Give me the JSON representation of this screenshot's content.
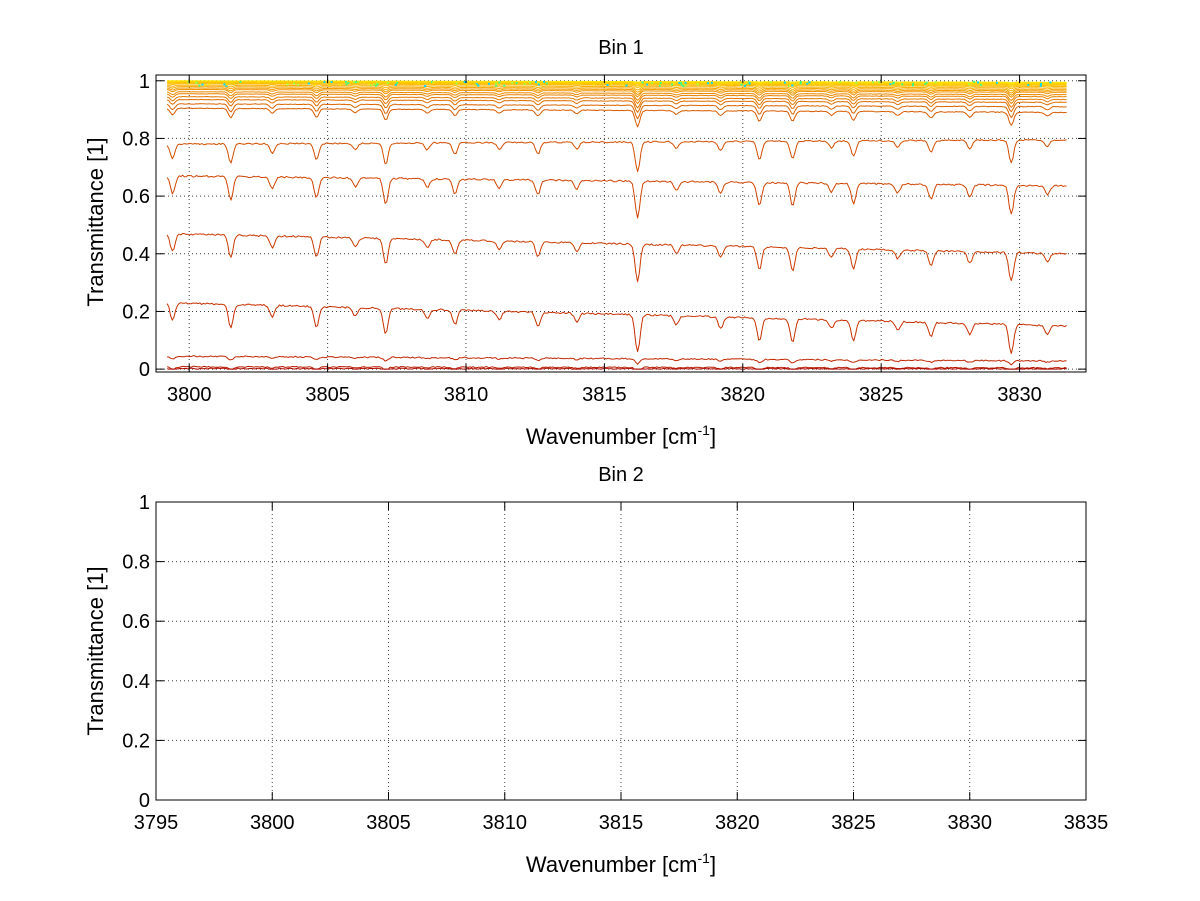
{
  "chart_data": [
    {
      "type": "line",
      "title": "Bin 1",
      "xlabel": "Wavenumber [cm",
      "xlabel_sup": "-1",
      "xlabel_end": "]",
      "ylabel": "Transmittance [1]",
      "xlim": [
        3798.8,
        3832.4
      ],
      "ylim": [
        -0.01,
        1.02
      ],
      "xticks": [
        3800,
        3805,
        3810,
        3815,
        3820,
        3825,
        3830
      ],
      "yticks": [
        0,
        0.2,
        0.4,
        0.6,
        0.8,
        1
      ],
      "ytick_labels": [
        "0",
        "0.2",
        "0.4",
        "0.6",
        "0.8",
        "1"
      ],
      "grid": true,
      "legend": "none",
      "x_range": [
        3799.2,
        3831.7
      ],
      "absorption_lines": [
        {
          "x": 3799.4,
          "depth": 0.06
        },
        {
          "x": 3801.5,
          "depth": 0.08
        },
        {
          "x": 3803.0,
          "depth": 0.04
        },
        {
          "x": 3804.6,
          "depth": 0.07
        },
        {
          "x": 3806.0,
          "depth": 0.03
        },
        {
          "x": 3807.1,
          "depth": 0.09
        },
        {
          "x": 3808.6,
          "depth": 0.03
        },
        {
          "x": 3809.6,
          "depth": 0.05
        },
        {
          "x": 3811.2,
          "depth": 0.03
        },
        {
          "x": 3812.6,
          "depth": 0.05
        },
        {
          "x": 3814.0,
          "depth": 0.03
        },
        {
          "x": 3816.2,
          "depth": 0.13
        },
        {
          "x": 3817.6,
          "depth": 0.03
        },
        {
          "x": 3819.2,
          "depth": 0.04
        },
        {
          "x": 3820.6,
          "depth": 0.08
        },
        {
          "x": 3821.8,
          "depth": 0.08
        },
        {
          "x": 3823.2,
          "depth": 0.03
        },
        {
          "x": 3824.0,
          "depth": 0.07
        },
        {
          "x": 3825.6,
          "depth": 0.03
        },
        {
          "x": 3826.8,
          "depth": 0.05
        },
        {
          "x": 3828.2,
          "depth": 0.04
        },
        {
          "x": 3829.7,
          "depth": 0.1
        },
        {
          "x": 3831.0,
          "depth": 0.03
        }
      ],
      "series": [
        {
          "level_start": 1.0,
          "level_end": 0.995,
          "color": "#ffee00"
        },
        {
          "level_start": 0.999,
          "level_end": 0.994,
          "color": "#ffe600"
        },
        {
          "level_start": 0.998,
          "level_end": 0.992,
          "color": "#ffdd00"
        },
        {
          "level_start": 0.997,
          "level_end": 0.99,
          "color": "#ffd400"
        },
        {
          "level_start": 0.995,
          "level_end": 0.987,
          "color": "#ffcb00"
        },
        {
          "level_start": 0.993,
          "level_end": 0.984,
          "color": "#ffc200"
        },
        {
          "level_start": 0.99,
          "level_end": 0.98,
          "color": "#ffb900"
        },
        {
          "level_start": 0.985,
          "level_end": 0.975,
          "color": "#fcaf00"
        },
        {
          "level_start": 0.98,
          "level_end": 0.97,
          "color": "#f8a600"
        },
        {
          "level_start": 0.975,
          "level_end": 0.965,
          "color": "#f49c00"
        },
        {
          "level_start": 0.97,
          "level_end": 0.96,
          "color": "#f09200"
        },
        {
          "level_start": 0.962,
          "level_end": 0.952,
          "color": "#ec8a00"
        },
        {
          "level_start": 0.955,
          "level_end": 0.945,
          "color": "#e88100"
        },
        {
          "level_start": 0.945,
          "level_end": 0.935,
          "color": "#e47800"
        },
        {
          "level_start": 0.935,
          "level_end": 0.925,
          "color": "#e06e00"
        },
        {
          "level_start": 0.92,
          "level_end": 0.91,
          "color": "#dc6400"
        },
        {
          "level_start": 0.905,
          "level_end": 0.89,
          "color": "#d85a00"
        },
        {
          "level_start": 0.78,
          "level_end": 0.795,
          "color": "#d44e00"
        },
        {
          "level_start": 0.67,
          "level_end": 0.635,
          "color": "#d04400"
        },
        {
          "level_start": 0.47,
          "level_end": 0.4,
          "color": "#cc3a00"
        },
        {
          "level_start": 0.23,
          "level_end": 0.15,
          "color": "#c83000"
        },
        {
          "level_start": 0.045,
          "level_end": 0.028,
          "color": "#c02600"
        },
        {
          "level_start": 0.008,
          "level_end": 0.004,
          "color": "#b81a00"
        },
        {
          "level_start": 0.002,
          "level_end": 0.001,
          "color": "#b00800"
        }
      ],
      "speckle_colors": [
        "#00d8ff",
        "#40ff80",
        "#a0ff40",
        "#ffe000"
      ]
    },
    {
      "type": "line",
      "title": "Bin 2",
      "xlabel": "Wavenumber [cm",
      "xlabel_sup": "-1",
      "xlabel_end": "]",
      "ylabel": "Transmittance [1]",
      "xlim": [
        3795,
        3835
      ],
      "ylim": [
        0,
        1
      ],
      "xticks": [
        3795,
        3800,
        3805,
        3810,
        3815,
        3820,
        3825,
        3830,
        3835
      ],
      "yticks": [
        0,
        0.2,
        0.4,
        0.6,
        0.8,
        1
      ],
      "ytick_labels": [
        "0",
        "0.2",
        "0.4",
        "0.6",
        "0.8",
        "1"
      ],
      "grid": true,
      "legend": "none",
      "series": []
    }
  ]
}
